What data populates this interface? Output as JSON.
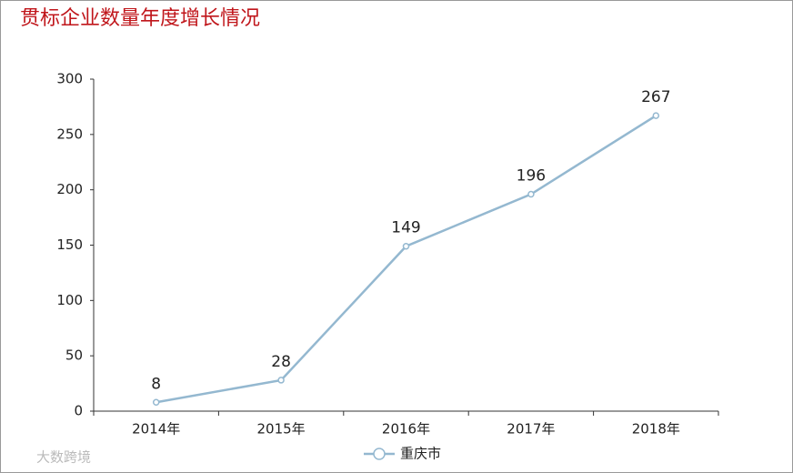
{
  "chart_data": {
    "type": "line",
    "title": "贯标企业数量年度增长情况",
    "categories": [
      "2014年",
      "2015年",
      "2016年",
      "2017年",
      "2018年"
    ],
    "series": [
      {
        "name": "重庆市",
        "color": "#94b8d0",
        "values": [
          8,
          28,
          149,
          196,
          267
        ]
      }
    ],
    "ylim": [
      0,
      300
    ],
    "yticks": [
      0,
      50,
      100,
      150,
      200,
      250,
      300
    ],
    "legend": "bottom",
    "watermark": "大数跨境"
  }
}
